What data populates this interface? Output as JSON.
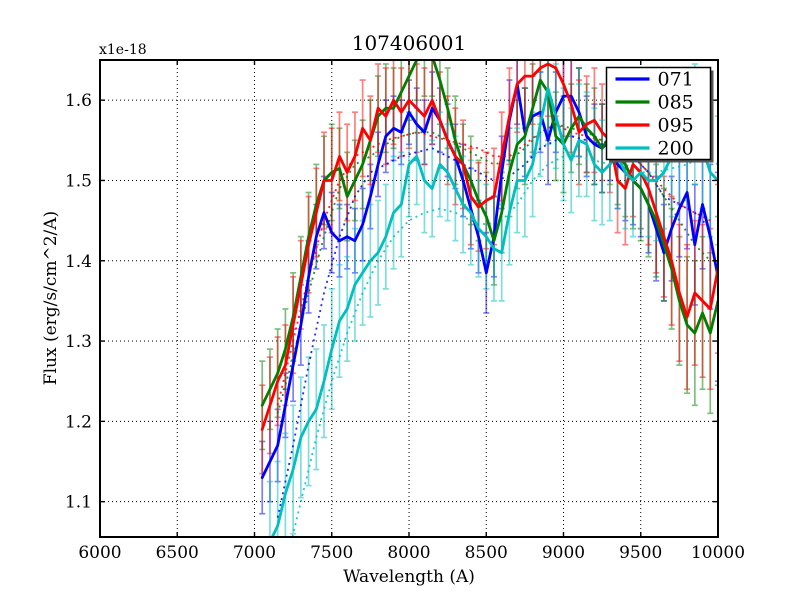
{
  "title": "107406001",
  "offset_label": "x1e-18",
  "axes": {
    "xlabel": "Wavelength (A)",
    "ylabel": "Flux (erg/s/cm^2/A)"
  },
  "legend": {
    "position": "upper right",
    "entries": [
      {
        "label": "071",
        "color": "#0000ff"
      },
      {
        "label": "085",
        "color": "#007f00"
      },
      {
        "label": "095",
        "color": "#ff0000"
      },
      {
        "label": "200",
        "color": "#00bfbf"
      }
    ]
  },
  "chart_data": {
    "type": "line",
    "title": "107406001",
    "xlabel": "Wavelength (A)",
    "ylabel": "Flux (erg/s/cm^2/A)",
    "y_offset_label": "x1e-18",
    "xlim": [
      6000,
      10000
    ],
    "ylim": [
      1.056,
      1.65
    ],
    "x_ticks": [
      6000,
      6500,
      7000,
      7500,
      8000,
      8500,
      9000,
      9500,
      10000
    ],
    "y_ticks": [
      1.1,
      1.2,
      1.3,
      1.4,
      1.5,
      1.6
    ],
    "grid": true,
    "grid_style": "dotted",
    "legend_position": "upper right",
    "x_step": 50,
    "series": [
      {
        "name": "071",
        "color": "#0000ff",
        "x_start": 7050,
        "values": [
          1.13,
          1.15,
          1.17,
          1.22,
          1.27,
          1.32,
          1.38,
          1.43,
          1.46,
          1.435,
          1.425,
          1.43,
          1.425,
          1.445,
          1.48,
          1.52,
          1.555,
          1.565,
          1.56,
          1.585,
          1.57,
          1.56,
          1.59,
          1.575,
          1.55,
          1.53,
          1.5,
          1.465,
          1.43,
          1.385,
          1.43,
          1.51,
          1.575,
          1.62,
          1.56,
          1.58,
          1.585,
          1.55,
          1.585,
          1.605,
          1.605,
          1.585,
          1.555,
          1.545,
          1.54,
          1.55,
          1.52,
          1.51,
          1.5,
          1.49,
          1.47,
          1.44,
          1.41,
          1.44,
          1.465,
          1.485,
          1.42,
          1.47,
          1.43,
          1.38
        ],
        "errors": [
          0.045,
          0.05,
          0.045,
          0.04,
          0.045,
          0.05,
          0.045,
          0.04,
          0.045,
          0.05,
          0.045,
          0.04,
          0.04,
          0.045,
          0.04,
          0.04,
          0.045,
          0.04,
          0.04,
          0.04,
          0.045,
          0.04,
          0.045,
          0.04,
          0.045,
          0.04,
          0.045,
          0.05,
          0.045,
          0.05,
          0.05,
          0.045,
          0.05,
          0.05,
          0.055,
          0.05,
          0.05,
          0.055,
          0.05,
          0.055,
          0.05,
          0.055,
          0.05,
          0.05,
          0.055,
          0.05,
          0.055,
          0.06,
          0.055,
          0.06,
          0.06,
          0.065,
          0.06,
          0.065,
          0.06,
          0.07,
          0.075,
          0.08,
          0.09,
          0.13
        ],
        "dotted": {
          "x_start": 7150,
          "x_step": 100,
          "values": [
            1.08,
            1.17,
            1.27,
            1.36,
            1.43,
            1.48,
            1.51,
            1.52,
            1.53,
            1.535,
            1.54,
            1.53,
            1.52,
            1.51,
            1.5,
            1.505,
            1.52,
            1.54,
            1.55,
            1.555,
            1.55,
            1.545,
            1.54,
            1.53,
            1.51,
            1.48,
            1.47,
            1.46,
            1.44
          ]
        }
      },
      {
        "name": "085",
        "color": "#007f00",
        "x_start": 7050,
        "values": [
          1.22,
          1.24,
          1.26,
          1.29,
          1.33,
          1.38,
          1.43,
          1.47,
          1.5,
          1.51,
          1.515,
          1.48,
          1.5,
          1.52,
          1.55,
          1.58,
          1.59,
          1.59,
          1.61,
          1.63,
          1.65,
          1.66,
          1.655,
          1.625,
          1.59,
          1.55,
          1.52,
          1.5,
          1.475,
          1.455,
          1.425,
          1.46,
          1.51,
          1.545,
          1.555,
          1.59,
          1.625,
          1.61,
          1.555,
          1.545,
          1.565,
          1.58,
          1.565,
          1.555,
          1.54,
          1.555,
          1.53,
          1.52,
          1.5,
          1.49,
          1.47,
          1.45,
          1.42,
          1.39,
          1.35,
          1.32,
          1.31,
          1.335,
          1.31,
          1.35
        ],
        "errors": [
          0.055,
          0.05,
          0.055,
          0.05,
          0.055,
          0.05,
          0.055,
          0.05,
          0.055,
          0.06,
          0.05,
          0.055,
          0.05,
          0.055,
          0.05,
          0.05,
          0.055,
          0.05,
          0.05,
          0.055,
          0.05,
          0.055,
          0.05,
          0.055,
          0.05,
          0.055,
          0.05,
          0.055,
          0.05,
          0.055,
          0.055,
          0.05,
          0.055,
          0.055,
          0.06,
          0.055,
          0.055,
          0.06,
          0.055,
          0.06,
          0.055,
          0.06,
          0.055,
          0.06,
          0.055,
          0.06,
          0.06,
          0.065,
          0.06,
          0.065,
          0.065,
          0.07,
          0.07,
          0.075,
          0.08,
          0.085,
          0.09,
          0.095,
          0.1,
          0.105
        ],
        "dotted": {
          "x_start": 7150,
          "x_step": 100,
          "values": [
            1.21,
            1.28,
            1.36,
            1.43,
            1.49,
            1.52,
            1.53,
            1.545,
            1.555,
            1.56,
            1.56,
            1.55,
            1.54,
            1.53,
            1.52,
            1.525,
            1.54,
            1.56,
            1.57,
            1.565,
            1.56,
            1.55,
            1.54,
            1.53,
            1.51,
            1.48,
            1.45,
            1.42,
            1.4
          ]
        }
      },
      {
        "name": "095",
        "color": "#ff0000",
        "x_start": 7050,
        "values": [
          1.19,
          1.22,
          1.25,
          1.27,
          1.32,
          1.37,
          1.42,
          1.46,
          1.5,
          1.5,
          1.53,
          1.51,
          1.53,
          1.565,
          1.55,
          1.59,
          1.58,
          1.6,
          1.585,
          1.6,
          1.59,
          1.58,
          1.6,
          1.575,
          1.55,
          1.53,
          1.52,
          1.48,
          1.467,
          1.475,
          1.48,
          1.53,
          1.58,
          1.62,
          1.63,
          1.63,
          1.64,
          1.645,
          1.64,
          1.62,
          1.595,
          1.56,
          1.57,
          1.575,
          1.56,
          1.55,
          1.5,
          1.49,
          1.52,
          1.51,
          1.49,
          1.46,
          1.43,
          1.4,
          1.36,
          1.33,
          1.36,
          1.35,
          1.34,
          1.39
        ],
        "errors": [
          0.055,
          0.06,
          0.055,
          0.05,
          0.06,
          0.055,
          0.06,
          0.055,
          0.06,
          0.065,
          0.055,
          0.06,
          0.055,
          0.06,
          0.055,
          0.055,
          0.06,
          0.055,
          0.055,
          0.06,
          0.055,
          0.06,
          0.055,
          0.06,
          0.055,
          0.06,
          0.055,
          0.06,
          0.055,
          0.06,
          0.06,
          0.055,
          0.06,
          0.06,
          0.065,
          0.06,
          0.06,
          0.065,
          0.06,
          0.065,
          0.06,
          0.065,
          0.06,
          0.065,
          0.06,
          0.065,
          0.065,
          0.07,
          0.065,
          0.07,
          0.07,
          0.075,
          0.075,
          0.08,
          0.085,
          0.09,
          0.09,
          0.095,
          0.1,
          0.105
        ],
        "dotted": {
          "x_start": 7150,
          "x_step": 100,
          "values": [
            1.22,
            1.3,
            1.38,
            1.45,
            1.5,
            1.53,
            1.54,
            1.55,
            1.555,
            1.56,
            1.555,
            1.55,
            1.545,
            1.54,
            1.53,
            1.53,
            1.545,
            1.56,
            1.57,
            1.56,
            1.555,
            1.55,
            1.54,
            1.53,
            1.51,
            1.49,
            1.47,
            1.46,
            1.45
          ]
        }
      },
      {
        "name": "200",
        "color": "#00bfbf",
        "x_start": 7100,
        "values": [
          1.05,
          1.07,
          1.11,
          1.14,
          1.18,
          1.2,
          1.215,
          1.25,
          1.29,
          1.325,
          1.34,
          1.37,
          1.385,
          1.4,
          1.41,
          1.43,
          1.46,
          1.47,
          1.52,
          1.53,
          1.5,
          1.49,
          1.52,
          1.51,
          1.49,
          1.47,
          1.46,
          1.44,
          1.43,
          1.415,
          1.41,
          1.46,
          1.5,
          1.5,
          1.52,
          1.57,
          1.615,
          1.58,
          1.545,
          1.525,
          1.55,
          1.545,
          1.52,
          1.51,
          1.52,
          1.53,
          1.51,
          1.5,
          1.51,
          1.5,
          1.5,
          1.51,
          1.53,
          1.54,
          1.55,
          1.57,
          1.54,
          1.51,
          1.5
        ],
        "errors": [
          0.075,
          0.08,
          0.075,
          0.08,
          0.075,
          0.08,
          0.075,
          0.07,
          0.075,
          0.07,
          0.065,
          0.07,
          0.065,
          0.07,
          0.065,
          0.065,
          0.07,
          0.065,
          0.065,
          0.06,
          0.065,
          0.06,
          0.065,
          0.06,
          0.065,
          0.06,
          0.065,
          0.06,
          0.065,
          0.065,
          0.06,
          0.065,
          0.065,
          0.07,
          0.065,
          0.065,
          0.07,
          0.065,
          0.07,
          0.065,
          0.07,
          0.065,
          0.07,
          0.065,
          0.07,
          0.065,
          0.07,
          0.07,
          0.07,
          0.07,
          0.075,
          0.07,
          0.075,
          0.07,
          0.075,
          0.075,
          0.075,
          0.08,
          0.08
        ],
        "dotted": {
          "x_start": 7200,
          "x_step": 100,
          "values": [
            1.02,
            1.1,
            1.18,
            1.25,
            1.31,
            1.36,
            1.4,
            1.43,
            1.45,
            1.46,
            1.465,
            1.46,
            1.45,
            1.445,
            1.45,
            1.47,
            1.5,
            1.52,
            1.53,
            1.53,
            1.525,
            1.52,
            1.52,
            1.51,
            1.51,
            1.515,
            1.52,
            1.53,
            1.52
          ]
        }
      }
    ]
  }
}
